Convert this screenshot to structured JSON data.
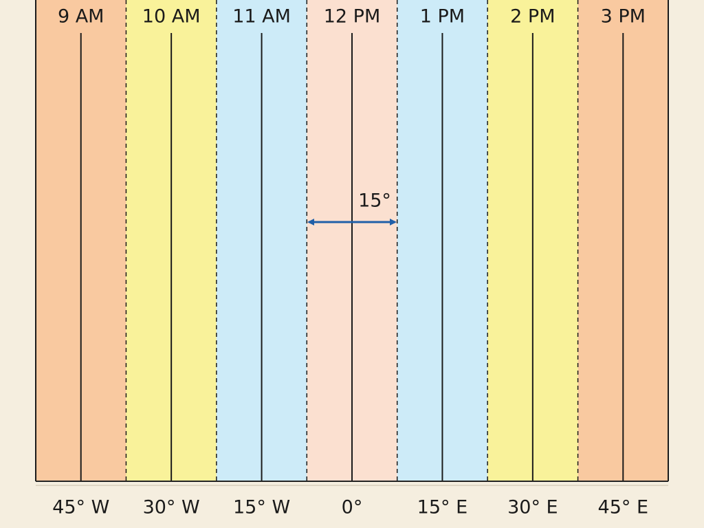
{
  "zones": [
    {
      "time": "9 AM",
      "longitude": "45° W"
    },
    {
      "time": "10 AM",
      "longitude": "30° W"
    },
    {
      "time": "11 AM",
      "longitude": "15° W"
    },
    {
      "time": "12 PM",
      "longitude": "0°"
    },
    {
      "time": "1 PM",
      "longitude": "15° E"
    },
    {
      "time": "2 PM",
      "longitude": "30° E"
    },
    {
      "time": "3 PM",
      "longitude": "45° E"
    }
  ],
  "annotation": {
    "label": "15°"
  }
}
